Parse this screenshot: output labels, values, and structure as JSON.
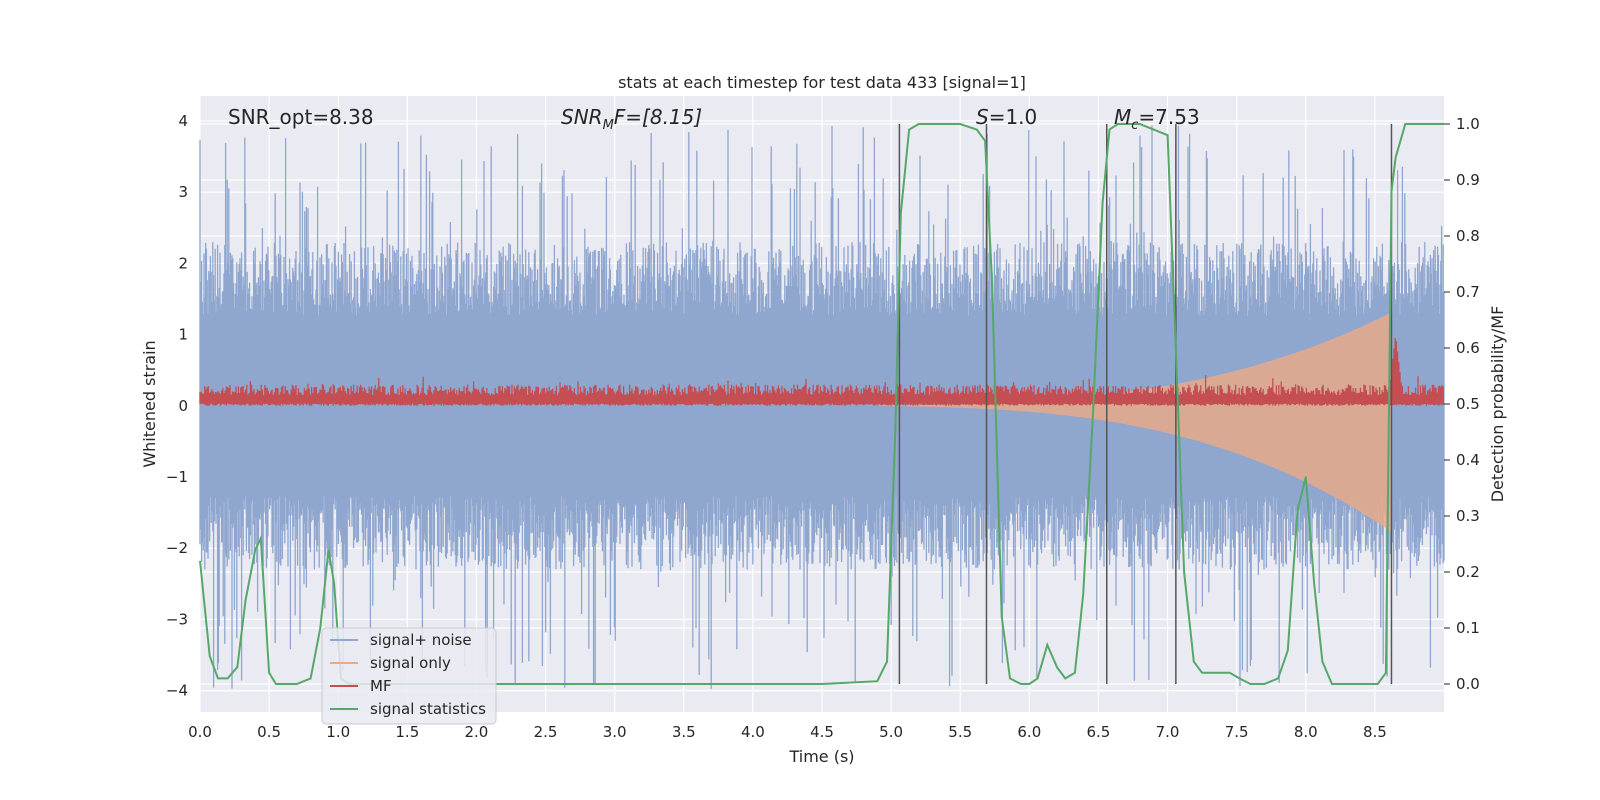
{
  "chart_data": {
    "type": "line",
    "title": "stats at each timestep for test data 433 [signal=1]",
    "xlabel": "Time (s)",
    "ylabel_left": "Whitened strain",
    "ylabel_right": "Detection probability/MF",
    "xlim": [
      0.0,
      9.0
    ],
    "ylim_left": [
      -4.3,
      4.35
    ],
    "ylim_right": [
      -0.05,
      1.05
    ],
    "x_ticks": [
      "0.0",
      "0.5",
      "1.0",
      "1.5",
      "2.0",
      "2.5",
      "3.0",
      "3.5",
      "4.0",
      "4.5",
      "5.0",
      "5.5",
      "6.0",
      "6.5",
      "7.0",
      "7.5",
      "8.0",
      "8.5"
    ],
    "y_ticks_left": [
      "4",
      "3",
      "2",
      "1",
      "0",
      "−1",
      "−2",
      "−3",
      "−4"
    ],
    "y_ticks_right": [
      "1.0",
      "0.9",
      "0.8",
      "0.7",
      "0.6",
      "0.5",
      "0.4",
      "0.3",
      "0.2",
      "0.1",
      "0.0"
    ],
    "grid": true,
    "legend_position": "lower-left",
    "annotations": {
      "snr_opt": "SNR_opt=8.38",
      "snr_mf_main": "SNR",
      "snr_mf_sub": "M",
      "snr_mf_rest": "F=[8.15]",
      "s_main": "S",
      "s_rest": "=1.0",
      "mc_main": "M",
      "mc_sub": "c",
      "mc_rest": "=7.53"
    },
    "vertical_lines_x": [
      5.06,
      5.69,
      6.56,
      7.06,
      8.62
    ],
    "series": [
      {
        "name": "signal+ noise",
        "color": "#8fa6cf",
        "axis": "left",
        "band_envelope": {
          "typical_low": -2.3,
          "typical_high": 2.3,
          "peak_low": -4.0,
          "peak_high": 4.0
        }
      },
      {
        "name": "signal only",
        "color": "#e8a98a",
        "axis": "left",
        "chirp": {
          "start": 4.7,
          "merger": 8.62,
          "max_amplitude": 1.4
        }
      },
      {
        "name": "MF",
        "color": "#c44e52",
        "axis": "left",
        "level": {
          "low": 0.0,
          "high": 0.3,
          "peak_time": 8.65,
          "peak_value": 1.0
        }
      },
      {
        "name": "signal statistics",
        "color": "#55a868",
        "axis": "right",
        "x": [
          0.0,
          0.07,
          0.13,
          0.2,
          0.27,
          0.33,
          0.4,
          0.44,
          0.5,
          0.55,
          0.6,
          0.7,
          0.8,
          0.87,
          0.93,
          0.97,
          1.02,
          1.08,
          1.15,
          1.25,
          1.4,
          1.6,
          2.0,
          3.0,
          4.0,
          4.5,
          4.9,
          4.97,
          5.03,
          5.07,
          5.13,
          5.2,
          5.3,
          5.5,
          5.62,
          5.68,
          5.73,
          5.8,
          5.86,
          5.94,
          6.0,
          6.06,
          6.13,
          6.2,
          6.26,
          6.33,
          6.39,
          6.46,
          6.53,
          6.58,
          6.64,
          6.7,
          6.8,
          7.0,
          7.06,
          7.12,
          7.19,
          7.25,
          7.31,
          7.38,
          7.45,
          7.52,
          7.6,
          7.7,
          7.8,
          7.87,
          7.94,
          8.0,
          8.06,
          8.12,
          8.19,
          8.25,
          8.31,
          8.38,
          8.45,
          8.52,
          8.58,
          8.62,
          8.65,
          8.72,
          8.8,
          8.9,
          9.0
        ],
        "y": [
          0.22,
          0.05,
          0.01,
          0.01,
          0.03,
          0.15,
          0.24,
          0.26,
          0.02,
          0.0,
          0.0,
          0.0,
          0.01,
          0.1,
          0.24,
          0.18,
          0.01,
          0.0,
          0.0,
          0.0,
          0.0,
          0.0,
          0.0,
          0.0,
          0.0,
          0.0,
          0.005,
          0.04,
          0.45,
          0.84,
          0.99,
          1.0,
          1.0,
          1.0,
          0.99,
          0.97,
          0.72,
          0.12,
          0.01,
          0.0,
          0.0,
          0.01,
          0.07,
          0.03,
          0.01,
          0.02,
          0.16,
          0.48,
          0.86,
          0.99,
          1.0,
          1.0,
          1.0,
          0.98,
          0.6,
          0.2,
          0.04,
          0.02,
          0.02,
          0.02,
          0.02,
          0.01,
          0.0,
          0.0,
          0.01,
          0.06,
          0.31,
          0.37,
          0.18,
          0.04,
          0.0,
          0.0,
          0.0,
          0.0,
          0.0,
          0.0,
          0.02,
          0.88,
          0.94,
          1.0,
          1.0,
          1.0,
          1.0
        ]
      }
    ]
  }
}
